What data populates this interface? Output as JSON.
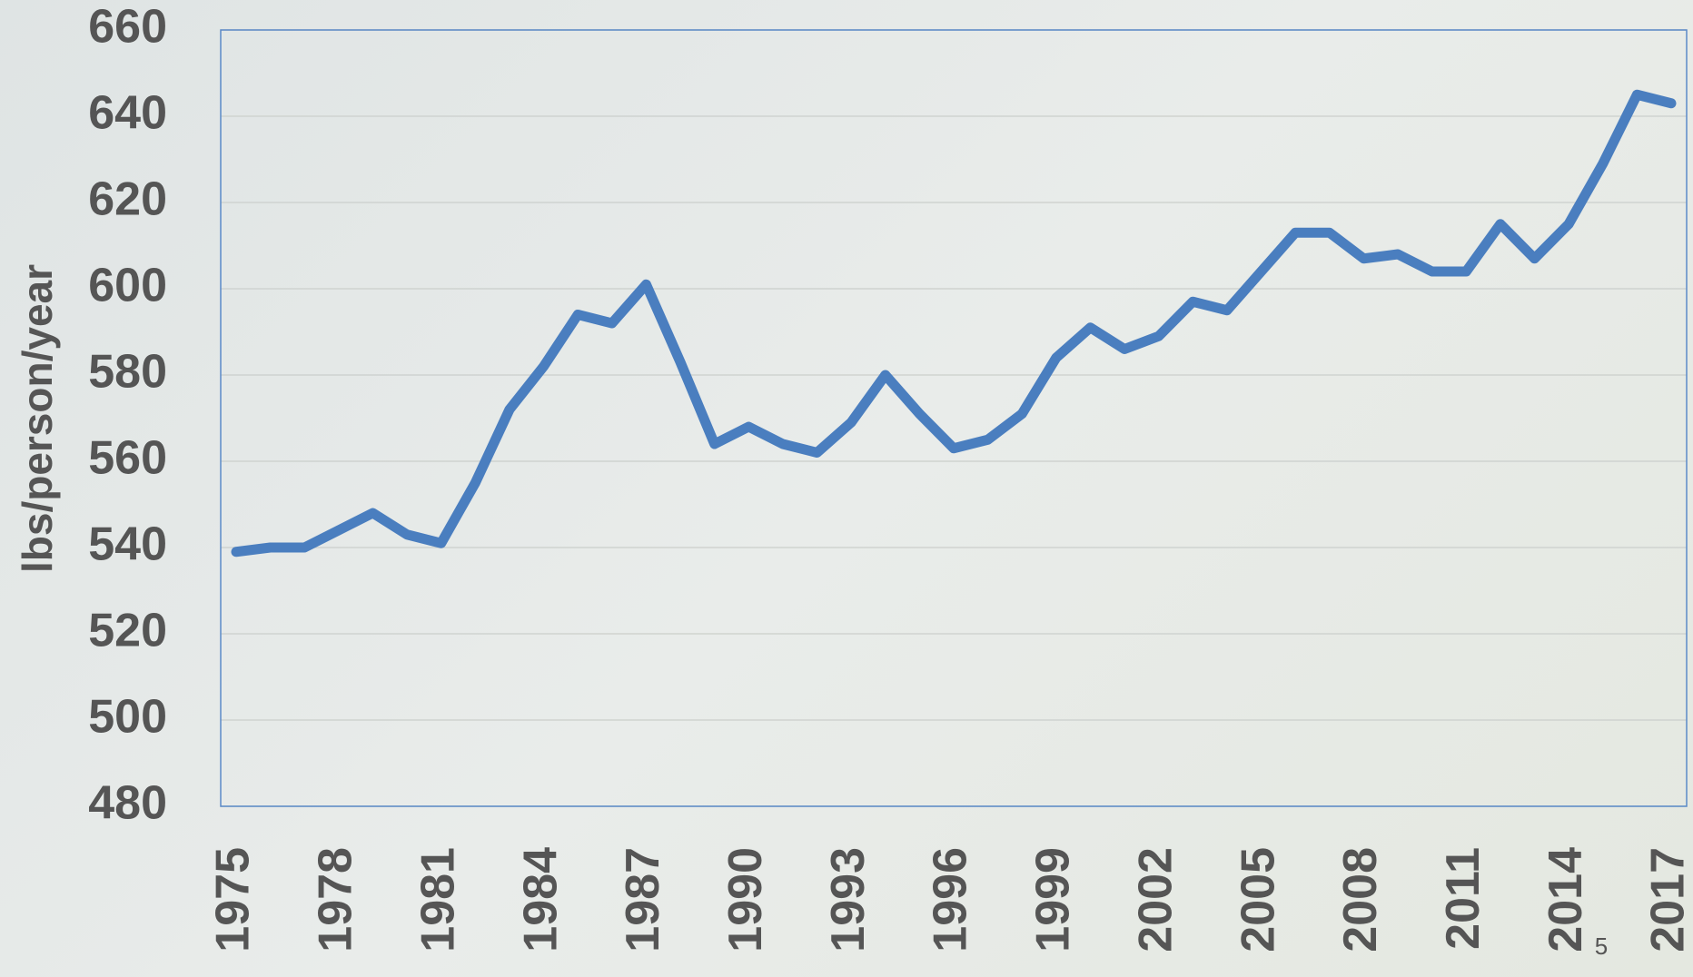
{
  "chart_data": {
    "type": "line",
    "ylabel": "lbs/person/year",
    "x": [
      1975,
      1976,
      1977,
      1978,
      1979,
      1980,
      1981,
      1982,
      1983,
      1984,
      1985,
      1986,
      1987,
      1988,
      1989,
      1990,
      1991,
      1992,
      1993,
      1994,
      1995,
      1996,
      1997,
      1998,
      1999,
      2000,
      2001,
      2002,
      2003,
      2004,
      2005,
      2006,
      2007,
      2008,
      2009,
      2010,
      2011,
      2012,
      2013,
      2014,
      2015,
      2016,
      2017
    ],
    "series": [
      {
        "name": "lbs/person/year",
        "color": "#4a7ebf",
        "values": [
          539,
          540,
          540,
          544,
          548,
          543,
          541,
          555,
          572,
          582,
          594,
          592,
          601,
          583,
          564,
          568,
          564,
          562,
          569,
          580,
          571,
          563,
          565,
          571,
          584,
          591,
          586,
          589,
          597,
          595,
          604,
          613,
          613,
          607,
          608,
          604,
          604,
          615,
          607,
          615,
          629,
          645,
          643
        ]
      }
    ],
    "xlim": [
      1975,
      2017
    ],
    "xticks": [
      1975,
      1978,
      1981,
      1984,
      1987,
      1990,
      1993,
      1996,
      1999,
      2002,
      2005,
      2008,
      2011,
      2014,
      2017
    ],
    "ylim": [
      480,
      660
    ],
    "yticks": [
      480,
      500,
      520,
      540,
      560,
      580,
      600,
      620,
      640,
      660
    ],
    "grid": true
  },
  "slide_number": "5"
}
